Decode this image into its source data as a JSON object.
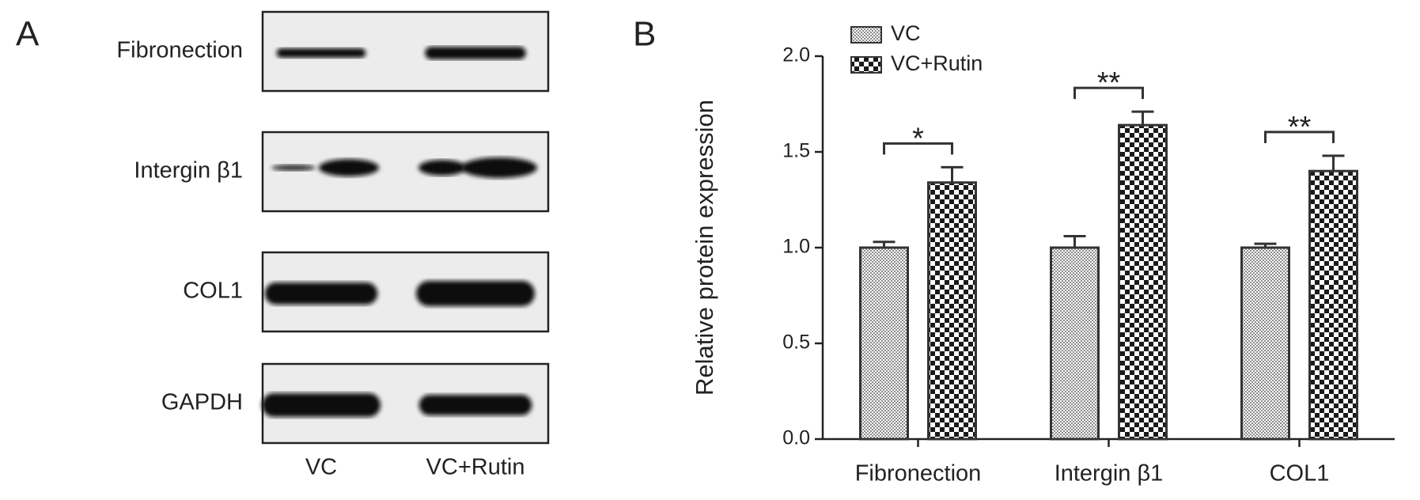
{
  "panel_a": {
    "label": "A",
    "rows": [
      "Fibronection",
      "Intergin β1",
      "COL1",
      "GAPDH"
    ],
    "lanes": [
      "VC",
      "VC+Rutin"
    ]
  },
  "panel_b": {
    "label": "B"
  },
  "chart_data": {
    "type": "bar",
    "ylabel": "Relative protein expression",
    "categories": [
      "Fibronection",
      "Intergin β1",
      "COL1"
    ],
    "series": [
      {
        "name": "VC",
        "color": "#8c8c8c",
        "pattern": "dots",
        "values": [
          1.0,
          1.0,
          1.0
        ],
        "errors": [
          0.03,
          0.06,
          0.02
        ]
      },
      {
        "name": "VC+Rutin",
        "color": "#1a1a1a",
        "pattern": "checker",
        "values": [
          1.34,
          1.64,
          1.4
        ],
        "errors": [
          0.08,
          0.07,
          0.08
        ]
      }
    ],
    "significance": [
      "*",
      "**",
      "**"
    ],
    "ylim": [
      0,
      2.0
    ],
    "yticks": [
      {
        "value": 0,
        "label": "0.0"
      },
      {
        "value": 0.5,
        "label": "0.5"
      },
      {
        "value": 1.0,
        "label": "1.0"
      },
      {
        "value": 1.5,
        "label": "1.5"
      },
      {
        "value": 2.0,
        "label": "2.0"
      }
    ],
    "legend": "top-left"
  }
}
